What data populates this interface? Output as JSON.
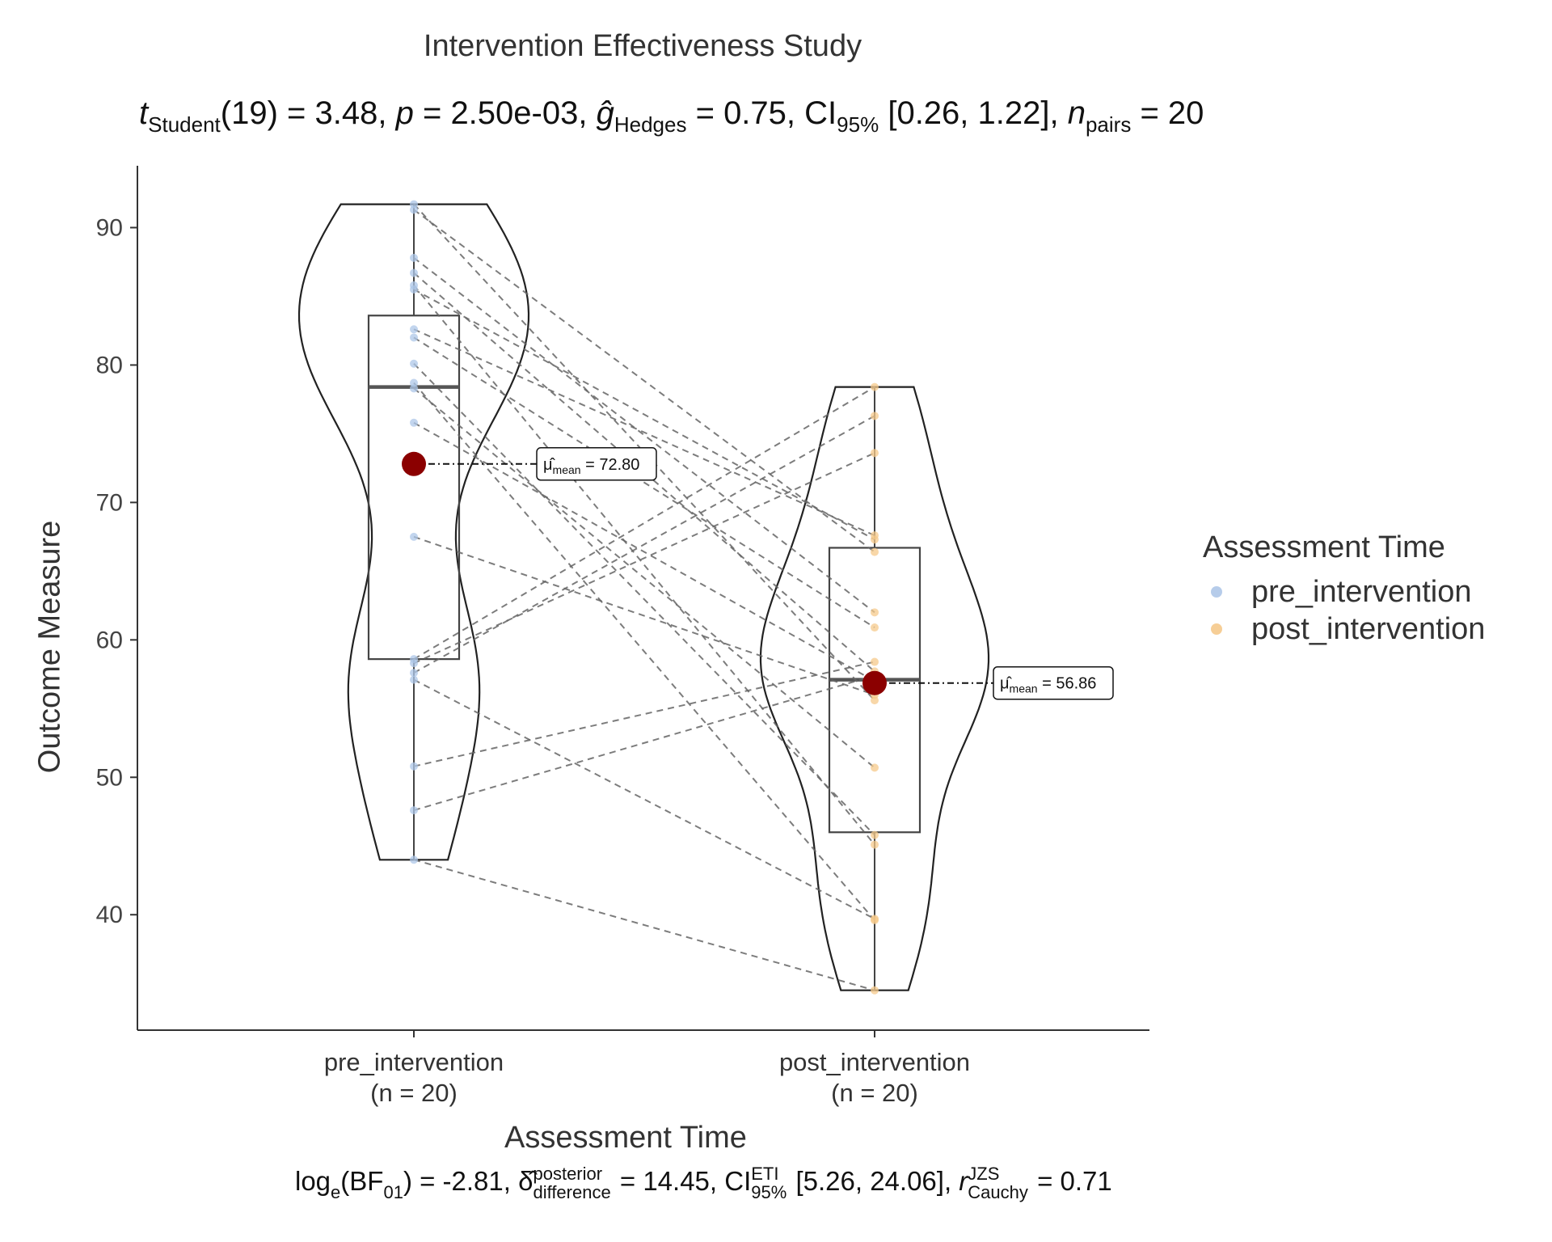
{
  "chart_data": {
    "type": "violin-box-paired",
    "title": "Intervention Effectiveness Study",
    "subtitle": {
      "statistic_symbol": "t",
      "statistic_sub": "Student",
      "df": "(19)",
      "statistic": "3.48",
      "p_symbol": "p",
      "p": "2.50e-03",
      "effect_symbol": "ĝ",
      "effect_sub": "Hedges",
      "effect": "0.75",
      "ci_label": "CI",
      "ci_sub": "95%",
      "ci": "[0.26, 1.22]",
      "n_symbol": "n",
      "n_sub": "pairs",
      "n": "20"
    },
    "caption": {
      "bf_label": "log",
      "bf_sub": "e",
      "bf_term": "(BF",
      "bf_term_sub": "01",
      "bf_value": ") = -2.81,",
      "delta_symbol": "δ̂",
      "delta_sup": "posterior",
      "delta_sub": "difference",
      "delta_value": "= 14.45,",
      "ci_label": "CI",
      "ci_sup": "ETI",
      "ci_sub": "95%",
      "ci_value": "[5.26, 24.06],",
      "r_symbol": "r",
      "r_sup": "JZS",
      "r_sub": "Cauchy",
      "r_value": "= 0.71"
    },
    "xlabel": "Assessment Time",
    "ylabel": "Outcome Measure",
    "ylim": [
      31.6,
      94.5
    ],
    "yticks": [
      40,
      50,
      60,
      70,
      80,
      90
    ],
    "categories": [
      "pre_intervention",
      "post_intervention"
    ],
    "category_counts": [
      "(n = 20)",
      "(n = 20)"
    ],
    "grid": false,
    "legend_placement": "right",
    "legend": {
      "title": "Assessment Time",
      "items": [
        {
          "label": "pre_intervention",
          "color": "#aec7e8"
        },
        {
          "label": "post_intervention",
          "color": "#f5c98b"
        }
      ]
    },
    "series": [
      {
        "name": "pre_intervention",
        "color": "#aec7e8",
        "values": [
          91.7,
          91.3,
          87.8,
          86.7,
          85.8,
          82.6,
          82.0,
          80.1,
          78.3,
          75.8,
          67.5,
          58.6,
          58.3,
          57.6,
          57.1,
          50.8,
          47.6,
          44.0,
          78.7,
          85.5
        ]
      },
      {
        "name": "post_intervention",
        "color": "#f5c98b",
        "values": [
          55.6,
          66.4,
          62.0,
          57.7,
          45.1,
          67.6,
          60.9,
          45.8,
          50.7,
          57.0,
          56.0,
          78.4,
          73.6,
          76.3,
          39.7,
          58.4,
          57.4,
          34.5,
          39.6,
          67.3
        ]
      }
    ],
    "boxplots": [
      {
        "q1": 58.6,
        "median": 78.4,
        "q3": 83.6,
        "min": 44.0,
        "max": 91.7
      },
      {
        "q1": 46.0,
        "median": 57.1,
        "q3": 66.7,
        "min": 34.5,
        "max": 78.4
      }
    ],
    "means": [
      {
        "value": 72.8,
        "label_prefix": "μ̂",
        "label_sub": "mean",
        "label_value": "= 72.80"
      },
      {
        "value": 56.86,
        "label_prefix": "μ̂",
        "label_sub": "mean",
        "label_value": "= 56.86"
      }
    ],
    "mean_color": "#8b0000"
  }
}
